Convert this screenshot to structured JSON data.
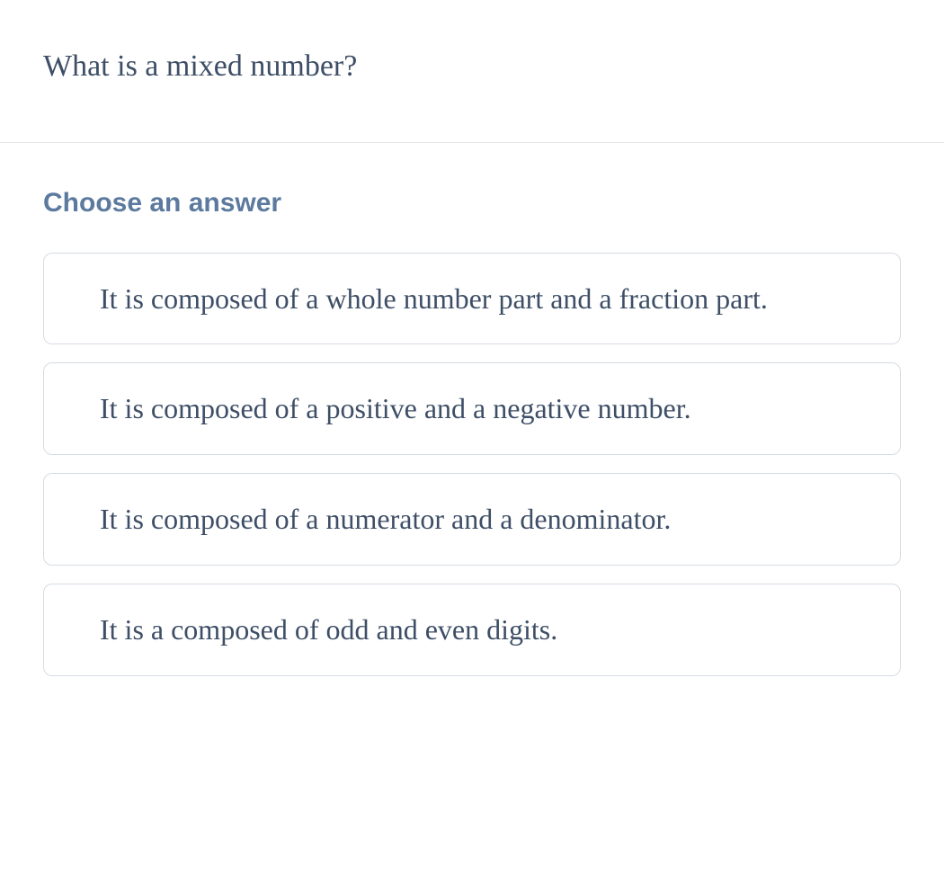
{
  "question": {
    "text": "What is a mixed number?"
  },
  "prompt": {
    "label": "Choose an answer"
  },
  "answers": [
    {
      "text": "It is composed of a whole number part and a fraction part."
    },
    {
      "text": "It is composed of a positive and a negative number."
    },
    {
      "text": "It is composed of a numerator and a denominator."
    },
    {
      "text": "It is a composed of odd and even digits."
    }
  ],
  "colors": {
    "text_primary": "#3d4e66",
    "text_accent": "#5b7a9e",
    "border": "#d6dce4",
    "divider": "#e5e7eb",
    "background": "#ffffff"
  }
}
